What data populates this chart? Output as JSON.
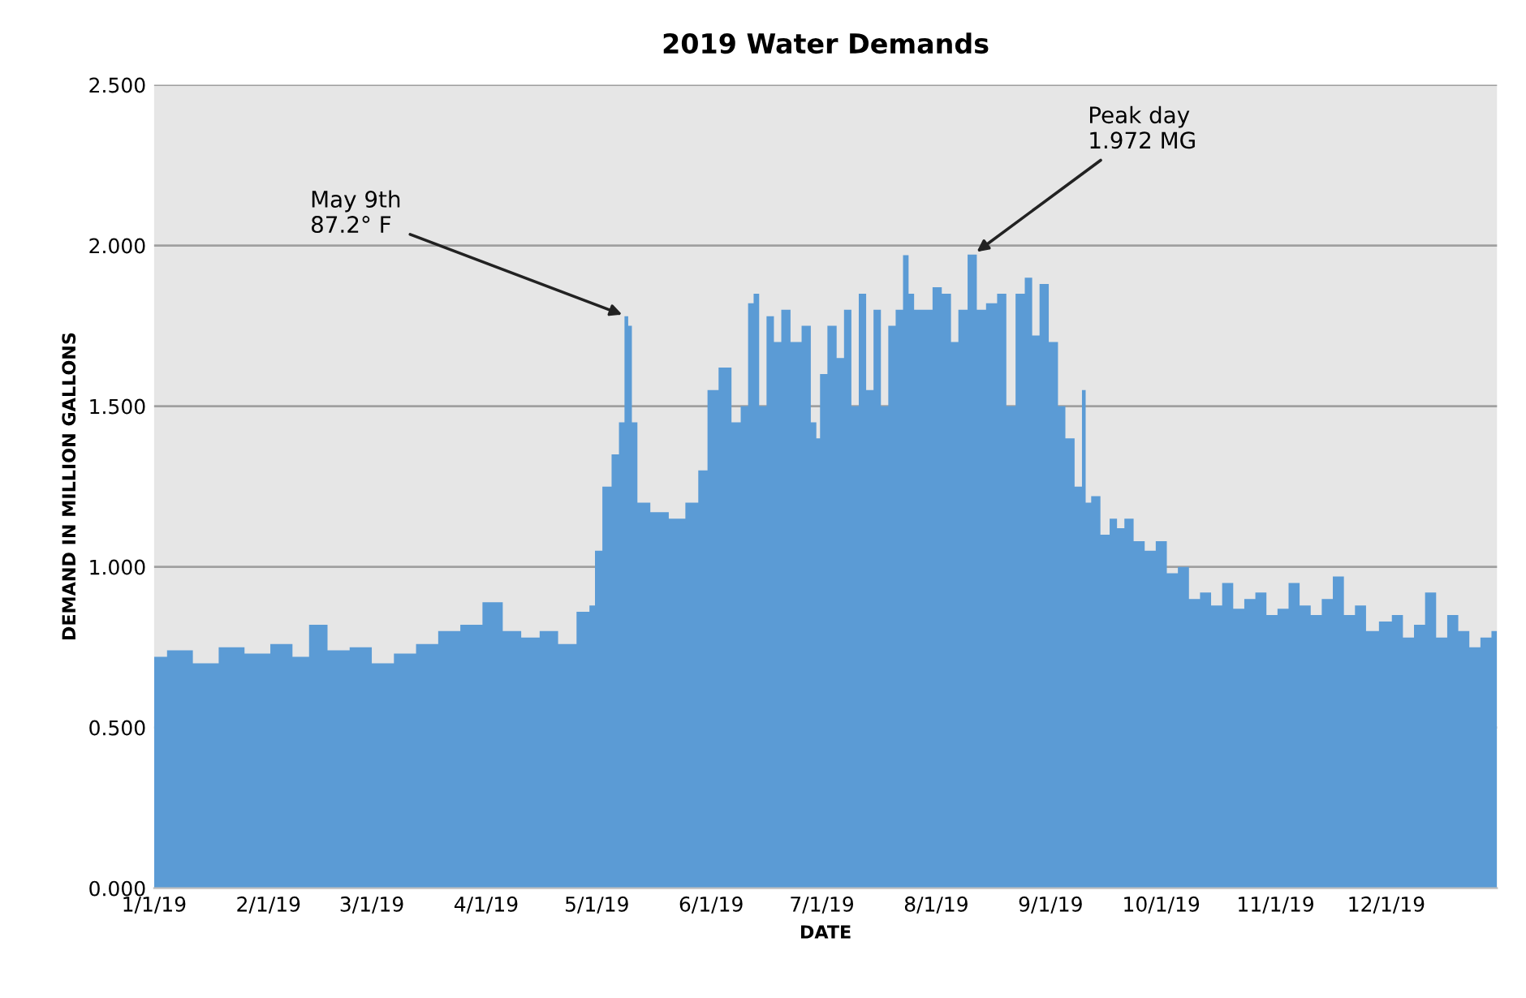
{
  "chart_data": {
    "type": "area",
    "title": "2019 Water Demands",
    "xlabel": "DATE",
    "ylabel": "DEMAND IN MILLION GALLONS",
    "x": [
      "2019-01-01",
      "2019-01-08",
      "2019-01-15",
      "2019-01-22",
      "2019-01-29",
      "2019-02-05",
      "2019-02-10",
      "2019-02-14",
      "2019-02-20",
      "2019-02-26",
      "2019-03-04",
      "2019-03-10",
      "2019-03-16",
      "2019-03-22",
      "2019-03-28",
      "2019-04-03",
      "2019-04-08",
      "2019-04-13",
      "2019-04-18",
      "2019-04-23",
      "2019-04-28",
      "2019-04-30",
      "2019-05-01",
      "2019-05-04",
      "2019-05-06",
      "2019-05-08",
      "2019-05-09",
      "2019-05-10",
      "2019-05-11",
      "2019-05-13",
      "2019-05-18",
      "2019-05-23",
      "2019-05-27",
      "2019-05-30",
      "2019-06-01",
      "2019-06-05",
      "2019-06-08",
      "2019-06-10",
      "2019-06-12",
      "2019-06-13",
      "2019-06-15",
      "2019-06-17",
      "2019-06-19",
      "2019-06-21",
      "2019-06-24",
      "2019-06-27",
      "2019-06-29",
      "2019-06-30",
      "2019-07-01",
      "2019-07-04",
      "2019-07-06",
      "2019-07-08",
      "2019-07-10",
      "2019-07-12",
      "2019-07-14",
      "2019-07-16",
      "2019-07-18",
      "2019-07-20",
      "2019-07-22",
      "2019-07-24",
      "2019-07-25",
      "2019-07-27",
      "2019-07-30",
      "2019-08-01",
      "2019-08-04",
      "2019-08-06",
      "2019-08-08",
      "2019-08-11",
      "2019-08-13",
      "2019-08-16",
      "2019-08-19",
      "2019-08-21",
      "2019-08-24",
      "2019-08-26",
      "2019-08-28",
      "2019-08-30",
      "2019-09-02",
      "2019-09-04",
      "2019-09-06",
      "2019-09-09",
      "2019-09-10",
      "2019-09-11",
      "2019-09-13",
      "2019-09-16",
      "2019-09-18",
      "2019-09-20",
      "2019-09-22",
      "2019-09-25",
      "2019-09-28",
      "2019-10-01",
      "2019-10-04",
      "2019-10-07",
      "2019-10-10",
      "2019-10-13",
      "2019-10-16",
      "2019-10-19",
      "2019-10-22",
      "2019-10-25",
      "2019-10-28",
      "2019-10-31",
      "2019-11-03",
      "2019-11-06",
      "2019-11-09",
      "2019-11-12",
      "2019-11-15",
      "2019-11-18",
      "2019-11-21",
      "2019-11-24",
      "2019-11-27",
      "2019-12-01",
      "2019-12-04",
      "2019-12-07",
      "2019-12-10",
      "2019-12-13",
      "2019-12-16",
      "2019-12-19",
      "2019-12-22",
      "2019-12-25",
      "2019-12-28",
      "2019-12-31"
    ],
    "series": [
      {
        "color": "#5b9bd5",
        "values": [
          0.72,
          0.74,
          0.7,
          0.75,
          0.73,
          0.76,
          0.72,
          0.82,
          0.74,
          0.75,
          0.7,
          0.73,
          0.76,
          0.8,
          0.82,
          0.89,
          0.8,
          0.78,
          0.8,
          0.76,
          0.86,
          0.88,
          1.05,
          1.25,
          1.35,
          1.45,
          1.78,
          1.75,
          1.45,
          1.2,
          1.17,
          1.15,
          1.2,
          1.3,
          1.55,
          1.62,
          1.45,
          1.5,
          1.82,
          1.85,
          1.5,
          1.78,
          1.7,
          1.8,
          1.7,
          1.75,
          1.45,
          1.4,
          1.6,
          1.75,
          1.65,
          1.8,
          1.5,
          1.85,
          1.55,
          1.8,
          1.5,
          1.75,
          1.8,
          1.97,
          1.85,
          1.8,
          1.8,
          1.87,
          1.85,
          1.7,
          1.8,
          1.972,
          1.8,
          1.82,
          1.85,
          1.5,
          1.85,
          1.9,
          1.72,
          1.88,
          1.7,
          1.5,
          1.4,
          1.25,
          1.55,
          1.2,
          1.22,
          1.1,
          1.15,
          1.12,
          1.15,
          1.08,
          1.05,
          1.08,
          0.98,
          1.0,
          0.9,
          0.92,
          0.88,
          0.95,
          0.87,
          0.9,
          0.92,
          0.85,
          0.87,
          0.95,
          0.88,
          0.85,
          0.9,
          0.97,
          0.85,
          0.88,
          0.8,
          0.83,
          0.85,
          0.78,
          0.82,
          0.92,
          0.78,
          0.85,
          0.8,
          0.75,
          0.78,
          0.8
        ]
      }
    ],
    "xlim": [
      "2019-01-01",
      "2019-12-31"
    ],
    "xticks": [
      {
        "value": "2019-01-01",
        "label": "1/1/19"
      },
      {
        "value": "2019-02-01",
        "label": "2/1/19"
      },
      {
        "value": "2019-03-01",
        "label": "3/1/19"
      },
      {
        "value": "2019-04-01",
        "label": "4/1/19"
      },
      {
        "value": "2019-05-01",
        "label": "5/1/19"
      },
      {
        "value": "2019-06-01",
        "label": "6/1/19"
      },
      {
        "value": "2019-07-01",
        "label": "7/1/19"
      },
      {
        "value": "2019-08-01",
        "label": "8/1/19"
      },
      {
        "value": "2019-09-01",
        "label": "9/1/19"
      },
      {
        "value": "2019-10-01",
        "label": "10/1/19"
      },
      {
        "value": "2019-11-01",
        "label": "11/1/19"
      },
      {
        "value": "2019-12-01",
        "label": "12/1/19"
      }
    ],
    "ylim": [
      0,
      2.5
    ],
    "yticks": [
      {
        "value": 0,
        "label": "0.000"
      },
      {
        "value": 0.5,
        "label": "0.500"
      },
      {
        "value": 1,
        "label": "1.000"
      },
      {
        "value": 1.5,
        "label": "1.500"
      },
      {
        "value": 2,
        "label": "2.000"
      },
      {
        "value": 2.5,
        "label": "2.500"
      }
    ],
    "grid": "y",
    "annotations": [
      {
        "text": "May 9th\n87.2° F",
        "x": "2019-05-09",
        "y": 1.78
      },
      {
        "text": "Peak day\n1.972 MG",
        "x": "2019-08-11",
        "y": 1.972
      }
    ]
  }
}
